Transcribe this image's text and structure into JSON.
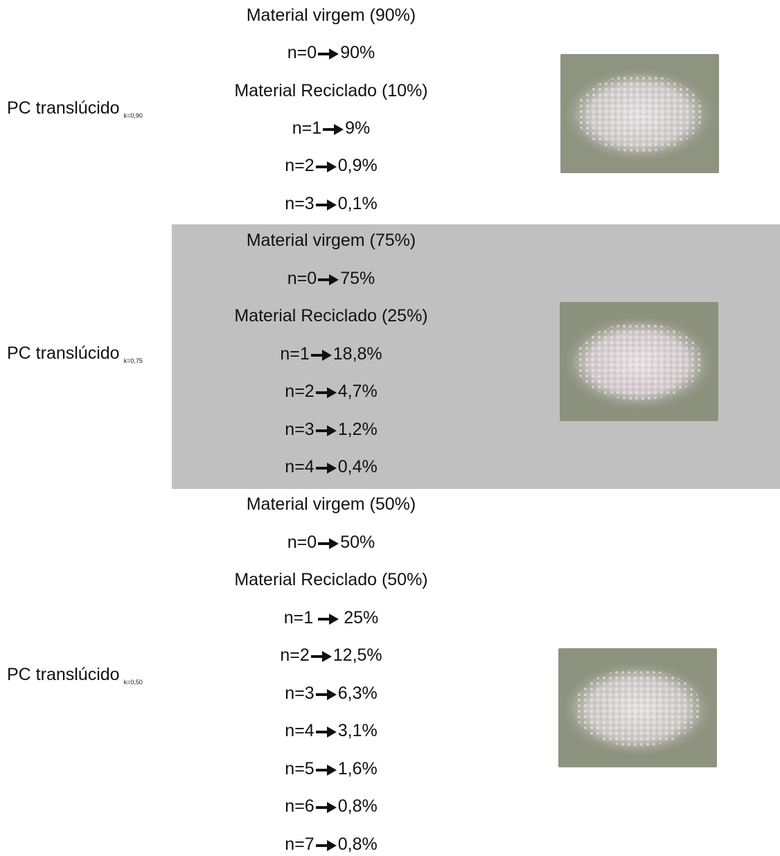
{
  "sections": [
    {
      "label": "PC translúcido",
      "subscript": "k=0,90",
      "items": [
        {
          "kind": "text",
          "text": "Material virgem (90%)"
        },
        {
          "kind": "entry",
          "n": "n=0",
          "value": "90%"
        },
        {
          "kind": "text",
          "text": "Material Reciclado (10%)"
        },
        {
          "kind": "entry",
          "n": "n=1",
          "value": "9%"
        },
        {
          "kind": "entry",
          "n": "n=2",
          "value": "0,9%"
        },
        {
          "kind": "entry",
          "n": "n=3",
          "value": "0,1%"
        }
      ],
      "image": "plastic-pellets-photo"
    },
    {
      "label": "PC translúcido",
      "subscript": "k=0,75",
      "items": [
        {
          "kind": "text",
          "text": "Material virgem (75%)"
        },
        {
          "kind": "entry",
          "n": "n=0",
          "value": "75%"
        },
        {
          "kind": "text",
          "text": "Material Reciclado (25%)"
        },
        {
          "kind": "entry",
          "n": "n=1",
          "value": "18,8%"
        },
        {
          "kind": "entry",
          "n": "n=2",
          "value": "4,7%"
        },
        {
          "kind": "entry",
          "n": "n=3",
          "value": "1,2%"
        },
        {
          "kind": "entry",
          "n": "n=4",
          "value": "0,4%"
        }
      ],
      "image": "plastic-pellets-photo",
      "shade_color": "#c0c0c0"
    },
    {
      "label": "PC translúcido",
      "subscript": "k=0,50",
      "items": [
        {
          "kind": "text",
          "text": "Material virgem (50%)"
        },
        {
          "kind": "entry",
          "n": "n=0",
          "value": "50%"
        },
        {
          "kind": "text",
          "text": "Material Reciclado (50%)"
        },
        {
          "kind": "entry",
          "n": "n=1",
          "value": "25%"
        },
        {
          "kind": "entry",
          "n": "n=2",
          "value": "12,5%"
        },
        {
          "kind": "entry",
          "n": "n=3",
          "value": "6,3%"
        },
        {
          "kind": "entry",
          "n": "n=4",
          "value": "3,1%"
        },
        {
          "kind": "entry",
          "n": "n=5",
          "value": "1,6%"
        },
        {
          "kind": "entry",
          "n": "n=6",
          "value": "0,8%"
        },
        {
          "kind": "entry",
          "n": "n=7",
          "value": "0,8%"
        }
      ],
      "image": "plastic-pellets-photo"
    }
  ]
}
